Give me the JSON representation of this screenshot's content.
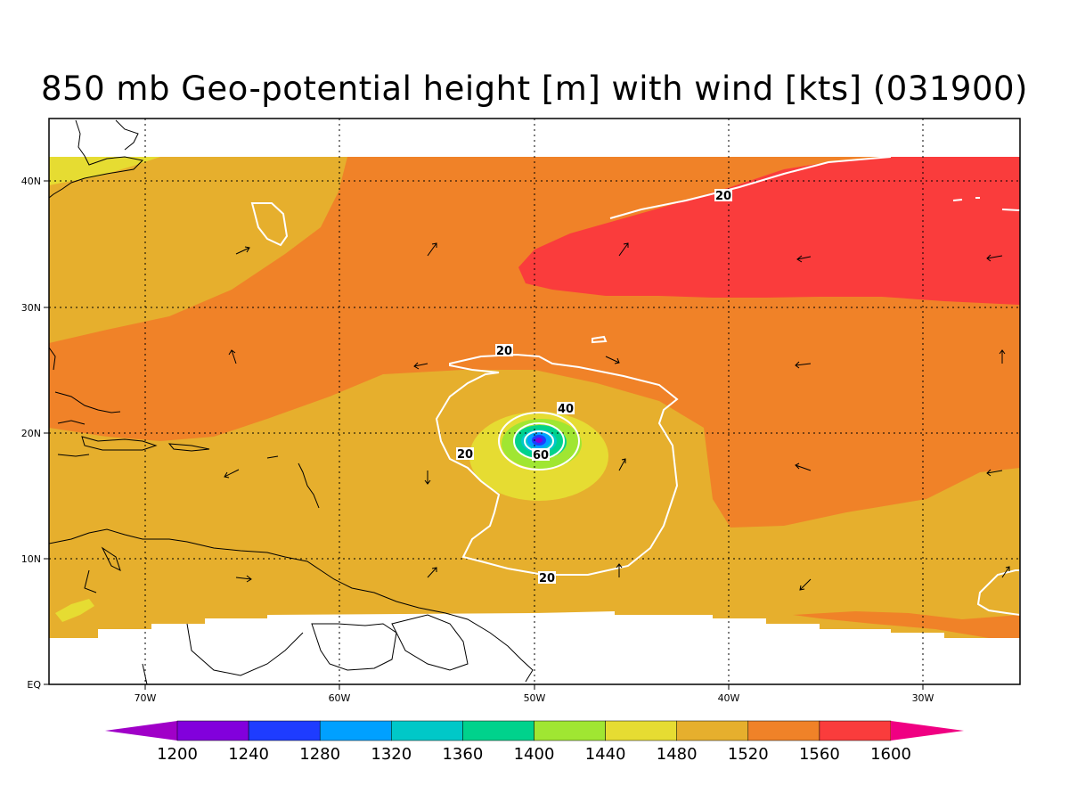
{
  "title": "850 mb Geo-potential height [m] with wind [kts] (031900)",
  "axes": {
    "lon_labels": [
      "70W",
      "60W",
      "50W",
      "40W",
      "30W"
    ],
    "lat_labels": [
      "40N",
      "30N",
      "20N",
      "10N",
      "EQ"
    ]
  },
  "map_extent": {
    "lon_range": [
      -75,
      -25
    ],
    "lat_range": [
      0,
      45
    ]
  },
  "colors": {
    "c1440": "#a0e632",
    "c1480": "#e6dc32",
    "c1520": "#e6af2d",
    "c1560": "#f08228",
    "c1600": "#fa3c3c",
    "c1400": "#00d28c",
    "c1360": "#00c8c8",
    "c1320": "#00a0ff",
    "c1280": "#1e3cff",
    "c1240": "#8200dc",
    "c1200": "#a000c8",
    "cmax": "#f00082",
    "wind_contour": "#ffffff",
    "coast": "#000000"
  },
  "wind_contour_labels": [
    "20",
    "20",
    "20",
    "20",
    "40",
    "60"
  ],
  "colorbar": {
    "labels": [
      "1200",
      "1240",
      "1280",
      "1320",
      "1360",
      "1400",
      "1440",
      "1480",
      "1520",
      "1560",
      "1600"
    ],
    "bins": [
      "#8200dc",
      "#1e3cff",
      "#00a0ff",
      "#00c8c8",
      "#00d28c",
      "#a0e632",
      "#e6dc32",
      "#e6af2d",
      "#f08228",
      "#fa3c3c"
    ],
    "low_end": "#a000c8",
    "high_end": "#f00082"
  }
}
